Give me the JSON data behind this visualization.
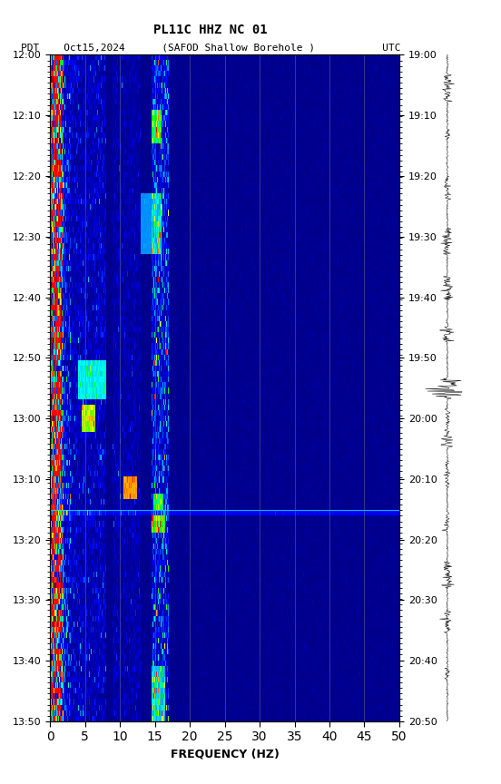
{
  "title_line1": "PL11C HHZ NC 01",
  "title_line2": "PDT    Oct15,2024      (SAFOD Shallow Borehole )           UTC",
  "xlabel": "FREQUENCY (HZ)",
  "left_time_labels": [
    "12:00",
    "12:10",
    "12:20",
    "12:30",
    "12:40",
    "12:50",
    "13:00",
    "13:10",
    "13:20",
    "13:30",
    "13:40",
    "13:50"
  ],
  "right_time_labels": [
    "19:00",
    "19:10",
    "19:20",
    "19:30",
    "19:40",
    "19:50",
    "20:00",
    "20:10",
    "20:20",
    "20:30",
    "20:40",
    "20:50"
  ],
  "freq_ticks": [
    0,
    5,
    10,
    15,
    20,
    25,
    30,
    35,
    40,
    45,
    50
  ],
  "freq_gridlines": [
    5,
    10,
    15,
    20,
    25,
    30,
    35,
    40,
    45
  ],
  "freq_min": 0,
  "freq_max": 50,
  "time_steps": 120,
  "background_color": "#ffffff",
  "spectrogram_bg": "#00008B",
  "noise_horizontal_line_row": 82,
  "noise_horizontal_line_color": "#00FFFF"
}
